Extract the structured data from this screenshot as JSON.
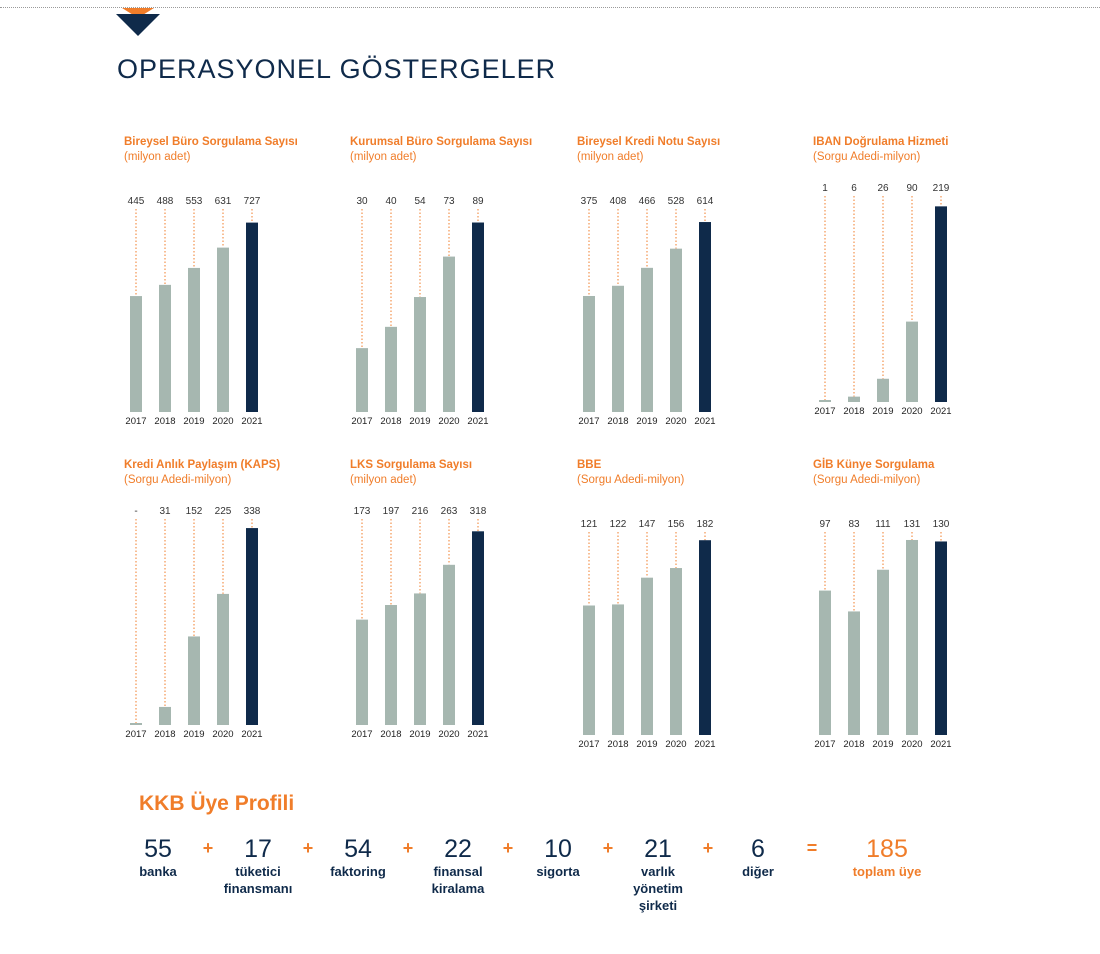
{
  "page": {
    "title": "OPERASYONEL GÖSTERGELER"
  },
  "colors": {
    "accent": "#f07d2a",
    "navy": "#0f2a4a",
    "bar": "#a6b7b0",
    "bar_highlight": "#0f2a4a"
  },
  "chart_data": [
    {
      "type": "bar",
      "title": "Bireysel Büro Sorgulama Sayısı",
      "subtitle": "(milyon adet)",
      "categories": [
        "2017",
        "2018",
        "2019",
        "2020",
        "2021"
      ],
      "values": [
        445,
        488,
        553,
        631,
        727
      ],
      "value_labels": [
        "445",
        "488",
        "553",
        "631",
        "727"
      ],
      "highlight_last": true,
      "ylim": [
        0,
        760
      ]
    },
    {
      "type": "bar",
      "title": "Kurumsal Büro Sorgulama Sayısı",
      "subtitle": "(milyon adet)",
      "categories": [
        "2017",
        "2018",
        "2019",
        "2020",
        "2021"
      ],
      "values": [
        30,
        40,
        54,
        73,
        89
      ],
      "value_labels": [
        "30",
        "40",
        "54",
        "73",
        "89"
      ],
      "highlight_last": true,
      "ylim": [
        0,
        93
      ]
    },
    {
      "type": "bar",
      "title": "Bireysel Kredi Notu Sayısı",
      "subtitle": "(milyon adet)",
      "categories": [
        "2017",
        "2018",
        "2019",
        "2020",
        "2021"
      ],
      "values": [
        375,
        408,
        466,
        528,
        614
      ],
      "value_labels": [
        "375",
        "408",
        "466",
        "528",
        "614"
      ],
      "highlight_last": true,
      "ylim": [
        0,
        640
      ]
    },
    {
      "type": "bar",
      "title": "IBAN Doğrulama Hizmeti",
      "subtitle": "(Sorgu Adedi-milyon)",
      "categories": [
        "2017",
        "2018",
        "2019",
        "2020",
        "2021"
      ],
      "values": [
        1,
        6,
        26,
        90,
        219
      ],
      "value_labels": [
        "1",
        "6",
        "26",
        "90",
        "219"
      ],
      "highlight_last": true,
      "ylim": [
        0,
        225
      ]
    },
    {
      "type": "bar",
      "title": "Kredi Anlık Paylaşım (KAPS)",
      "subtitle": "(Sorgu Adedi-milyon)",
      "categories": [
        "2017",
        "2018",
        "2019",
        "2020",
        "2021"
      ],
      "values": [
        0,
        31,
        152,
        225,
        338
      ],
      "value_labels": [
        "-",
        "31",
        "152",
        "225",
        "338"
      ],
      "highlight_last": true,
      "ylim": [
        0,
        345
      ]
    },
    {
      "type": "bar",
      "title": "LKS Sorgulama Sayısı",
      "subtitle": "(milyon adet)",
      "categories": [
        "2017",
        "2018",
        "2019",
        "2020",
        "2021"
      ],
      "values": [
        173,
        197,
        216,
        263,
        318
      ],
      "value_labels": [
        "173",
        "197",
        "216",
        "263",
        "318"
      ],
      "highlight_last": true,
      "ylim": [
        0,
        330
      ]
    },
    {
      "type": "bar",
      "title": "BBE",
      "subtitle": "(Sorgu Adedi-milyon)",
      "categories": [
        "2017",
        "2018",
        "2019",
        "2020",
        "2021"
      ],
      "values": [
        121,
        122,
        147,
        156,
        182
      ],
      "value_labels": [
        "121",
        "122",
        "147",
        "156",
        "182"
      ],
      "highlight_last": true,
      "ylim": [
        0,
        185
      ]
    },
    {
      "type": "bar",
      "title": "GİB Künye Sorgulama",
      "subtitle": "(Sorgu Adedi-milyon)",
      "categories": [
        "2017",
        "2018",
        "2019",
        "2020",
        "2021"
      ],
      "values": [
        97,
        83,
        111,
        131,
        130
      ],
      "value_labels": [
        "97",
        "83",
        "111",
        "131",
        "130"
      ],
      "highlight_last": true,
      "ylim": [
        0,
        133
      ]
    }
  ],
  "profile": {
    "title": "KKB Üye Profili",
    "items": [
      {
        "value": "55",
        "label": [
          "banka"
        ]
      },
      {
        "value": "17",
        "label": [
          "tüketici",
          "finansmanı"
        ]
      },
      {
        "value": "54",
        "label": [
          "faktoring"
        ]
      },
      {
        "value": "22",
        "label": [
          "finansal",
          "kiralama"
        ]
      },
      {
        "value": "10",
        "label": [
          "sigorta"
        ]
      },
      {
        "value": "21",
        "label": [
          "varlık",
          "yönetim",
          "şirketi"
        ]
      },
      {
        "value": "6",
        "label": [
          "diğer"
        ]
      }
    ],
    "plus": "+",
    "equals": "=",
    "total": {
      "value": "185",
      "label": [
        "toplam üye"
      ]
    }
  }
}
